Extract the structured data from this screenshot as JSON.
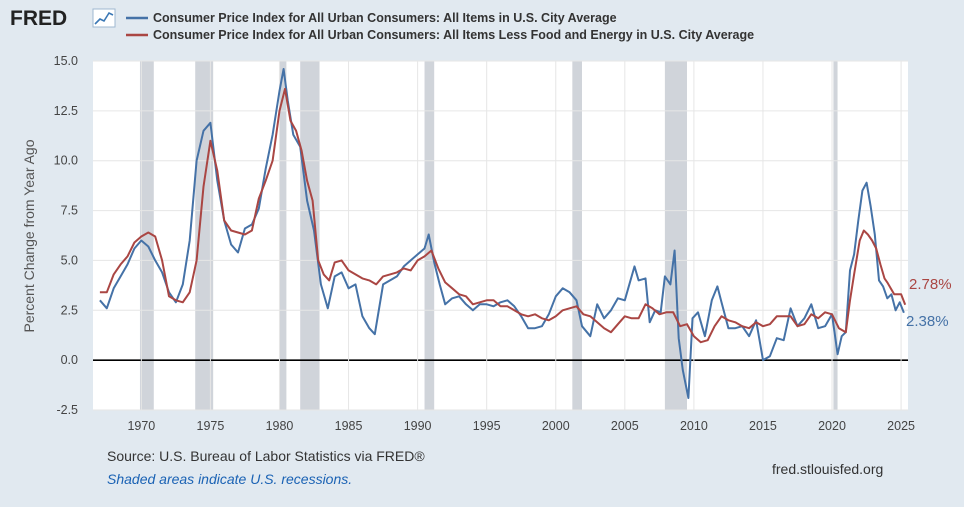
{
  "logo": {
    "text": "FRED"
  },
  "footer": {
    "source": "Source: U.S. Bureau of Labor Statistics via FRED®",
    "note": "Shaded areas indicate U.S. recessions.",
    "site": "fred.stlouisfed.org"
  },
  "colors": {
    "cpi": "#4572a7",
    "core": "#aa4643",
    "recession": "#c8ccd3",
    "note": "#1a62b4"
  },
  "chart_data": {
    "type": "line",
    "title": "",
    "ylabel": "Percent Change from Year Ago",
    "xlim": [
      1966.5,
      2025.5
    ],
    "ylim": [
      -2.5,
      15.0
    ],
    "grid": true,
    "x_ticks": [
      1970,
      1975,
      1980,
      1985,
      1990,
      1995,
      2000,
      2005,
      2010,
      2015,
      2020,
      2025
    ],
    "y_ticks": [
      -2.5,
      0.0,
      2.5,
      5.0,
      7.5,
      10.0,
      12.5,
      15.0
    ],
    "y_tick_labels": [
      "-2.5",
      "0.0",
      "2.5",
      "5.0",
      "7.5",
      "10.0",
      "12.5",
      "15.0"
    ],
    "recessions": [
      [
        1969.9,
        1970.9
      ],
      [
        1973.9,
        1975.2
      ],
      [
        1980.0,
        1980.5
      ],
      [
        1981.5,
        1982.9
      ],
      [
        1990.5,
        1991.2
      ],
      [
        2001.2,
        2001.9
      ],
      [
        2007.9,
        2009.5
      ],
      [
        2020.1,
        2020.4
      ]
    ],
    "legend_position": "top",
    "series": [
      {
        "name": "Consumer Price Index for All Urban Consumers: All Items in U.S. City Average",
        "end_label": "2.38%",
        "x": [
          1967.0,
          1967.5,
          1968.0,
          1968.5,
          1969.0,
          1969.5,
          1970.0,
          1970.5,
          1971.0,
          1971.5,
          1972.0,
          1972.5,
          1973.0,
          1973.5,
          1974.0,
          1974.5,
          1975.0,
          1975.5,
          1976.0,
          1976.5,
          1977.0,
          1977.5,
          1978.0,
          1978.5,
          1979.0,
          1979.5,
          1980.0,
          1980.3,
          1980.6,
          1981.0,
          1981.5,
          1982.0,
          1982.5,
          1983.0,
          1983.5,
          1984.0,
          1984.5,
          1985.0,
          1985.5,
          1986.0,
          1986.5,
          1986.9,
          1987.5,
          1988.0,
          1988.5,
          1989.0,
          1989.5,
          1990.0,
          1990.5,
          1990.8,
          1991.2,
          1991.6,
          1992.0,
          1992.5,
          1993.0,
          1993.5,
          1994.0,
          1994.5,
          1995.0,
          1995.5,
          1996.0,
          1996.5,
          1997.0,
          1997.5,
          1998.0,
          1998.5,
          1999.0,
          1999.5,
          2000.0,
          2000.5,
          2001.0,
          2001.5,
          2001.9,
          2002.5,
          2003.0,
          2003.5,
          2004.0,
          2004.5,
          2005.0,
          2005.7,
          2006.0,
          2006.5,
          2006.8,
          2007.2,
          2007.6,
          2007.9,
          2008.3,
          2008.6,
          2008.9,
          2009.2,
          2009.6,
          2009.9,
          2010.3,
          2010.8,
          2011.3,
          2011.7,
          2012.0,
          2012.5,
          2013.0,
          2013.5,
          2014.0,
          2014.5,
          2015.0,
          2015.5,
          2016.0,
          2016.5,
          2017.0,
          2017.5,
          2018.0,
          2018.5,
          2019.0,
          2019.5,
          2020.0,
          2020.4,
          2020.7,
          2021.0,
          2021.3,
          2021.6,
          2021.9,
          2022.2,
          2022.5,
          2022.8,
          2023.1,
          2023.4,
          2023.7,
          2024.0,
          2024.3,
          2024.6,
          2024.9,
          2025.2
        ],
        "y": [
          3.0,
          2.6,
          3.6,
          4.2,
          4.8,
          5.6,
          6.0,
          5.7,
          5.0,
          4.4,
          3.4,
          2.9,
          3.8,
          6.0,
          10.0,
          11.5,
          11.9,
          9.0,
          7.0,
          5.8,
          5.4,
          6.6,
          6.8,
          7.6,
          9.6,
          11.3,
          13.5,
          14.6,
          13.0,
          11.3,
          10.7,
          8.0,
          6.5,
          3.8,
          2.6,
          4.2,
          4.4,
          3.6,
          3.8,
          2.2,
          1.6,
          1.3,
          3.8,
          4.0,
          4.2,
          4.7,
          5.0,
          5.3,
          5.6,
          6.3,
          4.9,
          3.8,
          2.8,
          3.1,
          3.2,
          2.8,
          2.5,
          2.8,
          2.8,
          2.7,
          2.9,
          3.0,
          2.7,
          2.2,
          1.6,
          1.6,
          1.7,
          2.3,
          3.2,
          3.6,
          3.4,
          3.0,
          1.7,
          1.2,
          2.8,
          2.1,
          2.5,
          3.1,
          3.0,
          4.7,
          4.0,
          4.1,
          1.9,
          2.5,
          2.4,
          4.2,
          3.8,
          5.5,
          1.1,
          -0.5,
          -1.9,
          2.1,
          2.4,
          1.2,
          3.0,
          3.7,
          2.9,
          1.6,
          1.6,
          1.7,
          1.2,
          2.0,
          0.0,
          0.2,
          1.1,
          1.0,
          2.6,
          1.7,
          2.1,
          2.8,
          1.6,
          1.7,
          2.3,
          0.3,
          1.2,
          1.4,
          4.5,
          5.3,
          7.0,
          8.5,
          8.9,
          7.7,
          6.3,
          4.0,
          3.7,
          3.1,
          3.3,
          2.5,
          2.9,
          2.38
        ]
      },
      {
        "name": "Consumer Price Index for All Urban Consumers: All Items Less Food and Energy in U.S. City Average",
        "end_label": "2.78%",
        "x": [
          1967.0,
          1967.5,
          1968.0,
          1968.5,
          1969.0,
          1969.5,
          1970.0,
          1970.5,
          1971.0,
          1971.5,
          1972.0,
          1972.5,
          1973.0,
          1973.5,
          1974.0,
          1974.5,
          1975.0,
          1975.5,
          1976.0,
          1976.5,
          1977.0,
          1977.5,
          1978.0,
          1978.5,
          1979.0,
          1979.5,
          1980.0,
          1980.4,
          1980.8,
          1981.2,
          1981.6,
          1982.0,
          1982.4,
          1982.8,
          1983.2,
          1983.6,
          1984.0,
          1984.5,
          1985.0,
          1985.5,
          1986.0,
          1986.5,
          1987.0,
          1987.5,
          1988.0,
          1988.5,
          1989.0,
          1989.5,
          1990.0,
          1990.5,
          1991.0,
          1991.5,
          1992.0,
          1992.5,
          1993.0,
          1993.5,
          1994.0,
          1994.5,
          1995.0,
          1995.5,
          1996.0,
          1996.5,
          1997.0,
          1997.5,
          1998.0,
          1998.5,
          1999.0,
          1999.5,
          2000.0,
          2000.5,
          2001.0,
          2001.5,
          2002.0,
          2002.5,
          2003.0,
          2003.5,
          2004.0,
          2004.5,
          2005.0,
          2005.5,
          2006.0,
          2006.5,
          2007.0,
          2007.5,
          2008.0,
          2008.5,
          2009.0,
          2009.5,
          2010.0,
          2010.5,
          2011.0,
          2011.5,
          2012.0,
          2012.5,
          2013.0,
          2013.5,
          2014.0,
          2014.5,
          2015.0,
          2015.5,
          2016.0,
          2016.5,
          2017.0,
          2017.5,
          2018.0,
          2018.5,
          2019.0,
          2019.5,
          2020.0,
          2020.5,
          2021.0,
          2021.3,
          2021.6,
          2022.0,
          2022.3,
          2022.6,
          2022.9,
          2023.2,
          2023.5,
          2023.8,
          2024.0,
          2024.5,
          2025.0,
          2025.3
        ],
        "y": [
          3.4,
          3.4,
          4.3,
          4.8,
          5.2,
          5.9,
          6.2,
          6.4,
          6.2,
          5.0,
          3.2,
          3.0,
          2.9,
          3.4,
          5.0,
          8.7,
          11.0,
          9.5,
          7.0,
          6.5,
          6.4,
          6.3,
          6.5,
          8.1,
          9.0,
          10.0,
          12.5,
          13.6,
          12.0,
          11.5,
          10.5,
          9.0,
          8.0,
          5.0,
          4.3,
          4.0,
          4.9,
          5.0,
          4.5,
          4.3,
          4.1,
          4.0,
          3.8,
          4.2,
          4.3,
          4.4,
          4.6,
          4.5,
          5.0,
          5.2,
          5.5,
          4.6,
          3.9,
          3.6,
          3.3,
          3.2,
          2.8,
          2.9,
          3.0,
          3.0,
          2.7,
          2.7,
          2.5,
          2.3,
          2.2,
          2.3,
          2.1,
          2.0,
          2.2,
          2.5,
          2.6,
          2.7,
          2.3,
          2.2,
          1.9,
          1.6,
          1.4,
          1.8,
          2.2,
          2.1,
          2.1,
          2.8,
          2.6,
          2.3,
          2.4,
          2.4,
          1.7,
          1.8,
          1.2,
          0.9,
          1.0,
          1.7,
          2.2,
          2.0,
          1.9,
          1.7,
          1.6,
          1.9,
          1.7,
          1.8,
          2.2,
          2.2,
          2.2,
          1.7,
          1.8,
          2.3,
          2.1,
          2.4,
          2.3,
          1.6,
          1.4,
          3.0,
          4.3,
          6.0,
          6.5,
          6.3,
          6.0,
          5.6,
          4.8,
          4.1,
          3.9,
          3.3,
          3.3,
          2.78
        ]
      }
    ]
  }
}
